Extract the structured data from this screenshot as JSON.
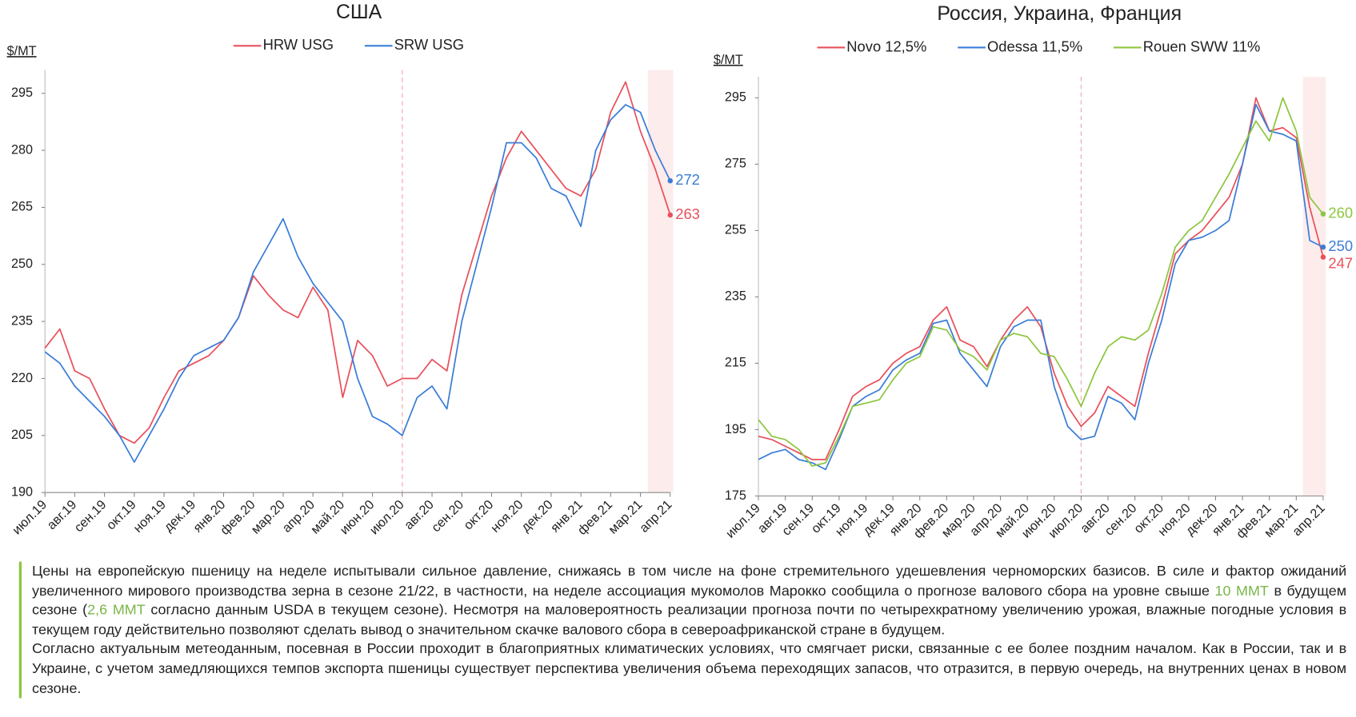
{
  "chart_data": [
    {
      "type": "line",
      "title": "США",
      "y_label": "$/MT",
      "categories": [
        "июл.19",
        null,
        "авг.19",
        null,
        "сен.19",
        null,
        "окт.19",
        null,
        "ноя.19",
        null,
        "дек.19",
        null,
        "янв.20",
        null,
        "фев.20",
        null,
        "мар.20",
        null,
        "апр.20",
        null,
        "май.20",
        null,
        "июн.20",
        null,
        "июл.20",
        null,
        "авг.20",
        null,
        "сен.20",
        null,
        "окт.20",
        null,
        "ноя.20",
        null,
        "дек.20",
        null,
        "янв.21",
        null,
        "фев.21",
        null,
        "мар.21",
        null,
        "апр.21"
      ],
      "series": [
        {
          "name": "HRW USG",
          "color": "#e8505b",
          "values": [
            228,
            233,
            222,
            220,
            212,
            205,
            203,
            207,
            215,
            222,
            224,
            226,
            230,
            236,
            247,
            242,
            238,
            236,
            244,
            238,
            215,
            230,
            226,
            218,
            220,
            220,
            225,
            222,
            242,
            255,
            268,
            278,
            285,
            280,
            275,
            270,
            268,
            275,
            290,
            298,
            285,
            275,
            263
          ]
        },
        {
          "name": "SRW USG",
          "color": "#3a7dd8",
          "values": [
            227,
            224,
            218,
            214,
            210,
            205,
            198,
            205,
            212,
            220,
            226,
            228,
            230,
            236,
            248,
            255,
            262,
            252,
            245,
            240,
            235,
            220,
            210,
            208,
            205,
            215,
            218,
            212,
            235,
            250,
            265,
            282,
            282,
            278,
            270,
            268,
            260,
            280,
            288,
            292,
            290,
            280,
            272
          ]
        }
      ],
      "ylim": [
        190,
        300
      ],
      "yticks": [
        190,
        205,
        220,
        235,
        250,
        265,
        280,
        295
      ]
    },
    {
      "type": "line",
      "title": "Россия, Украина, Франция",
      "y_label": "$/MT",
      "categories": [
        "июл.19",
        null,
        "авг.19",
        null,
        "сен.19",
        null,
        "окт.19",
        null,
        "ноя.19",
        null,
        "дек.19",
        null,
        "янв.20",
        null,
        "фев.20",
        null,
        "мар.20",
        null,
        "апр.20",
        null,
        "май.20",
        null,
        "июн.20",
        null,
        "июл.20",
        null,
        "авг.20",
        null,
        "сен.20",
        null,
        "окт.20",
        null,
        "ноя.20",
        null,
        "дек.20",
        null,
        "янв.21",
        null,
        "фев.21",
        null,
        "мар.21",
        null,
        "апр.21"
      ],
      "series": [
        {
          "name": "Novo 12,5%",
          "color": "#e8505b",
          "values": [
            193,
            192,
            190,
            188,
            186,
            186,
            195,
            205,
            208,
            210,
            215,
            218,
            220,
            228,
            232,
            222,
            220,
            214,
            222,
            228,
            232,
            226,
            212,
            202,
            196,
            200,
            208,
            205,
            202,
            218,
            232,
            248,
            252,
            255,
            260,
            265,
            275,
            295,
            285,
            286,
            283,
            262,
            247
          ]
        },
        {
          "name": "Odessa 11,5%",
          "color": "#3a7dd8",
          "values": [
            186,
            188,
            189,
            186,
            185,
            183,
            192,
            202,
            205,
            207,
            213,
            216,
            218,
            227,
            228,
            218,
            213,
            208,
            220,
            226,
            228,
            228,
            208,
            196,
            192,
            193,
            205,
            203,
            198,
            215,
            228,
            245,
            252,
            253,
            255,
            258,
            275,
            293,
            285,
            284,
            282,
            252,
            250
          ]
        },
        {
          "name": "Rouen SWW 11%",
          "color": "#8dc63f",
          "values": [
            198,
            193,
            192,
            189,
            184,
            185,
            193,
            202,
            203,
            204,
            210,
            215,
            217,
            226,
            225,
            219,
            217,
            213,
            222,
            224,
            223,
            218,
            217,
            210,
            202,
            212,
            220,
            223,
            222,
            225,
            236,
            250,
            255,
            258,
            265,
            272,
            280,
            288,
            282,
            295,
            285,
            265,
            260
          ]
        }
      ],
      "ylim": [
        175,
        300
      ],
      "yticks": [
        175,
        195,
        215,
        235,
        255,
        275,
        295
      ]
    }
  ],
  "commentary": {
    "paragraphs": [
      [
        {
          "text": "Цены на европейскую пшеницу на неделе испытывали сильное давление, снижаясь в том числе на фоне стремительного удешевления черноморских базисов. В силе и фактор ожиданий увеличенного мирового производства зерна в сезоне 21/22, в частности, на неделе ассоциация мукомолов Марокко сообщила о прогнозе валового сбора на уровне свыше "
        },
        {
          "text": "10 ММТ",
          "color": "#7ab648"
        },
        {
          "text": " в будущем сезоне ("
        },
        {
          "text": "2,6 ММТ",
          "color": "#7ab648"
        },
        {
          "text": " согласно данным USDA в текущем сезоне). Несмотря на маловероятность реализации прогноза почти по четырехкратному увеличению урожая, влажные погодные условия в текущем году действительно позволяют сделать вывод о значительном скачке валового сбора в североафриканской стране в будущем."
        }
      ],
      [
        {
          "text": "Согласно актуальным метеоданным, посевная в России проходит в благоприятных климатических условиях, что смягчает риски, связанные с ее более поздним началом. Как в России, так и в Украине, с учетом замедляющихся темпов экспорта пшеницы существует перспектива увеличения объема переходящих запасов, что отразится, в первую очередь, на внутренних ценах в новом сезоне."
        }
      ]
    ]
  }
}
